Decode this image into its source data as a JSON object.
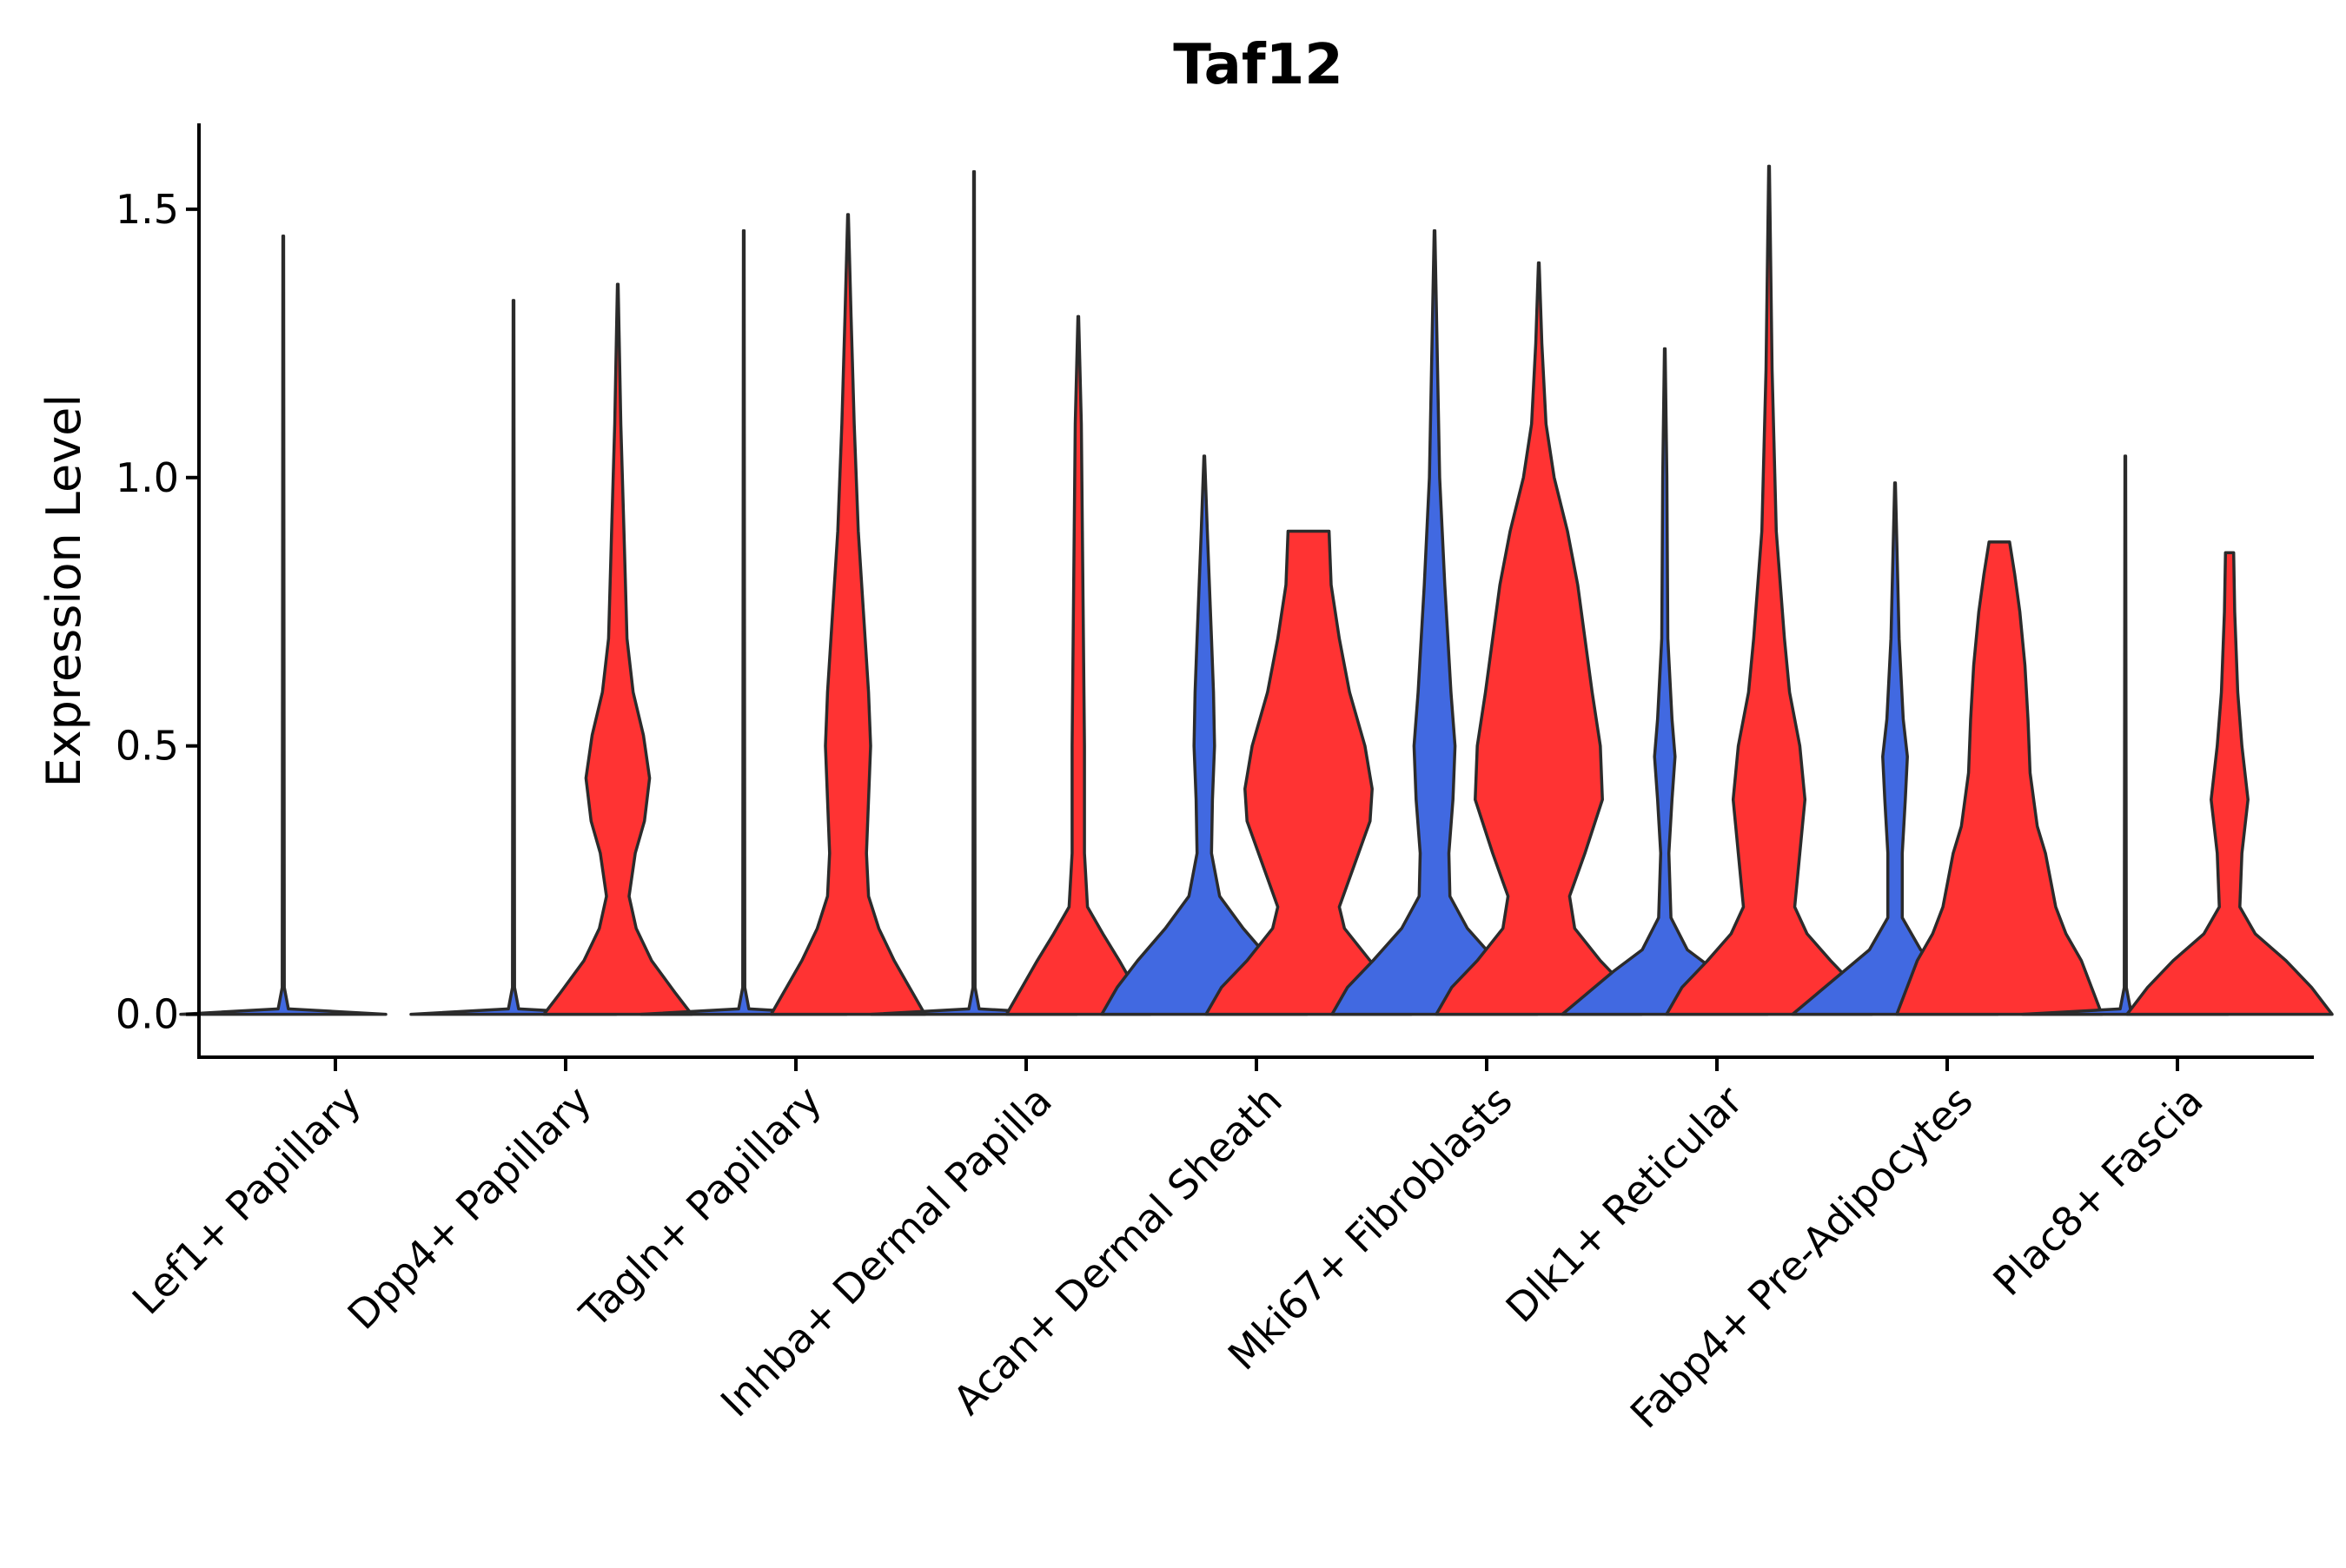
{
  "chart_data": {
    "type": "violin",
    "title": "Taf12",
    "xlabel": "",
    "ylabel": "Expression Level",
    "ylim": [
      -0.08,
      1.66
    ],
    "yticks": [
      0.0,
      0.5,
      1.0,
      1.5
    ],
    "ytick_labels": [
      "0.0",
      "0.5",
      "1.0",
      "1.5"
    ],
    "legend": "none",
    "colors": {
      "group1": "#4169E1",
      "group2": "#FF3333"
    },
    "categories": [
      "Lef1+ Papillary",
      "Dpp4+ Papillary",
      "Tagln+ Papillary",
      "Inhba+ Dermal Papilla",
      "Acan+ Dermal Sheath",
      "Mki67+ Fibroblasts",
      "Dlk1+ Reticular",
      "Fabp4+ Pre-Adipocytes",
      "Plac8+ Fascia"
    ],
    "violins": [
      [
        {
          "group": "group1",
          "max": 1.45,
          "density": [
            [
              0,
              1
            ],
            [
              0.01,
              0.05
            ],
            [
              0.05,
              0.01
            ],
            [
              1.45,
              0.003
            ]
          ]
        },
        null
      ],
      [
        {
          "group": "group1",
          "max": 1.33,
          "density": [
            [
              0,
              1
            ],
            [
              0.01,
              0.05
            ],
            [
              0.05,
              0.01
            ],
            [
              1.33,
              0.003
            ]
          ]
        },
        {
          "group": "group2",
          "max": 1.36,
          "density": [
            [
              0,
              0.72
            ],
            [
              0.04,
              0.56
            ],
            [
              0.1,
              0.33
            ],
            [
              0.16,
              0.18
            ],
            [
              0.22,
              0.11
            ],
            [
              0.3,
              0.17
            ],
            [
              0.36,
              0.26
            ],
            [
              0.44,
              0.31
            ],
            [
              0.52,
              0.25
            ],
            [
              0.6,
              0.15
            ],
            [
              0.7,
              0.09
            ],
            [
              0.9,
              0.06
            ],
            [
              1.1,
              0.03
            ],
            [
              1.36,
              0.003
            ]
          ]
        }
      ],
      [
        {
          "group": "group1",
          "max": 1.46,
          "density": [
            [
              0,
              1
            ],
            [
              0.01,
              0.05
            ],
            [
              0.05,
              0.01
            ],
            [
              1.46,
              0.003
            ]
          ]
        },
        {
          "group": "group2",
          "max": 1.49,
          "density": [
            [
              0,
              0.75
            ],
            [
              0.05,
              0.6
            ],
            [
              0.1,
              0.45
            ],
            [
              0.16,
              0.3
            ],
            [
              0.22,
              0.2
            ],
            [
              0.3,
              0.18
            ],
            [
              0.4,
              0.2
            ],
            [
              0.5,
              0.22
            ],
            [
              0.6,
              0.2
            ],
            [
              0.75,
              0.15
            ],
            [
              0.9,
              0.1
            ],
            [
              1.1,
              0.06
            ],
            [
              1.3,
              0.03
            ],
            [
              1.49,
              0.003
            ]
          ]
        }
      ],
      [
        {
          "group": "group1",
          "max": 1.57,
          "density": [
            [
              0,
              1
            ],
            [
              0.01,
              0.05
            ],
            [
              0.05,
              0.01
            ],
            [
              1.57,
              0.003
            ]
          ]
        },
        {
          "group": "group2",
          "max": 1.3,
          "density": [
            [
              0,
              0.7
            ],
            [
              0.05,
              0.55
            ],
            [
              0.1,
              0.4
            ],
            [
              0.15,
              0.24
            ],
            [
              0.2,
              0.09
            ],
            [
              0.3,
              0.06
            ],
            [
              0.5,
              0.06
            ],
            [
              0.7,
              0.05
            ],
            [
              0.9,
              0.04
            ],
            [
              1.1,
              0.03
            ],
            [
              1.3,
              0.003
            ]
          ]
        }
      ],
      [
        {
          "group": "group1",
          "max": 1.04,
          "density": [
            [
              0,
              1
            ],
            [
              0.05,
              0.85
            ],
            [
              0.1,
              0.65
            ],
            [
              0.16,
              0.38
            ],
            [
              0.22,
              0.15
            ],
            [
              0.3,
              0.07
            ],
            [
              0.4,
              0.08
            ],
            [
              0.5,
              0.1
            ],
            [
              0.6,
              0.09
            ],
            [
              0.7,
              0.07
            ],
            [
              0.8,
              0.05
            ],
            [
              0.9,
              0.03
            ],
            [
              1.04,
              0.003
            ]
          ]
        },
        {
          "group": "group2",
          "max": 0.9,
          "density": [
            [
              0,
              1
            ],
            [
              0.05,
              0.85
            ],
            [
              0.1,
              0.6
            ],
            [
              0.16,
              0.35
            ],
            [
              0.2,
              0.3
            ],
            [
              0.28,
              0.45
            ],
            [
              0.36,
              0.6
            ],
            [
              0.42,
              0.62
            ],
            [
              0.5,
              0.55
            ],
            [
              0.6,
              0.4
            ],
            [
              0.7,
              0.3
            ],
            [
              0.8,
              0.22
            ],
            [
              0.9,
              0.2
            ]
          ]
        }
      ],
      [
        {
          "group": "group1",
          "max": 1.46,
          "density": [
            [
              0,
              1
            ],
            [
              0.05,
              0.85
            ],
            [
              0.1,
              0.6
            ],
            [
              0.16,
              0.32
            ],
            [
              0.22,
              0.15
            ],
            [
              0.3,
              0.14
            ],
            [
              0.4,
              0.18
            ],
            [
              0.5,
              0.2
            ],
            [
              0.6,
              0.16
            ],
            [
              0.8,
              0.1
            ],
            [
              1.0,
              0.05
            ],
            [
              1.2,
              0.03
            ],
            [
              1.46,
              0.003
            ]
          ]
        },
        {
          "group": "group2",
          "max": 1.4,
          "density": [
            [
              0,
              1
            ],
            [
              0.05,
              0.85
            ],
            [
              0.1,
              0.6
            ],
            [
              0.16,
              0.35
            ],
            [
              0.22,
              0.3
            ],
            [
              0.3,
              0.45
            ],
            [
              0.4,
              0.62
            ],
            [
              0.5,
              0.6
            ],
            [
              0.6,
              0.52
            ],
            [
              0.7,
              0.45
            ],
            [
              0.8,
              0.38
            ],
            [
              0.9,
              0.28
            ],
            [
              1.0,
              0.15
            ],
            [
              1.1,
              0.07
            ],
            [
              1.25,
              0.03
            ],
            [
              1.4,
              0.003
            ]
          ]
        }
      ],
      [
        {
          "group": "group1",
          "max": 1.24,
          "density": [
            [
              0,
              1
            ],
            [
              0.04,
              0.75
            ],
            [
              0.08,
              0.5
            ],
            [
              0.12,
              0.22
            ],
            [
              0.18,
              0.06
            ],
            [
              0.3,
              0.04
            ],
            [
              0.4,
              0.07
            ],
            [
              0.48,
              0.1
            ],
            [
              0.55,
              0.07
            ],
            [
              0.7,
              0.03
            ],
            [
              1.0,
              0.02
            ],
            [
              1.24,
              0.003
            ]
          ]
        },
        {
          "group": "group2",
          "max": 1.58,
          "density": [
            [
              0,
              1
            ],
            [
              0.05,
              0.85
            ],
            [
              0.1,
              0.6
            ],
            [
              0.15,
              0.37
            ],
            [
              0.2,
              0.25
            ],
            [
              0.3,
              0.3
            ],
            [
              0.4,
              0.35
            ],
            [
              0.5,
              0.3
            ],
            [
              0.6,
              0.2
            ],
            [
              0.7,
              0.15
            ],
            [
              0.9,
              0.07
            ],
            [
              1.2,
              0.03
            ],
            [
              1.58,
              0.003
            ]
          ]
        }
      ],
      [
        {
          "group": "group1",
          "max": 0.99,
          "density": [
            [
              0,
              1
            ],
            [
              0.04,
              0.75
            ],
            [
              0.08,
              0.5
            ],
            [
              0.12,
              0.25
            ],
            [
              0.18,
              0.07
            ],
            [
              0.3,
              0.07
            ],
            [
              0.4,
              0.1
            ],
            [
              0.48,
              0.12
            ],
            [
              0.55,
              0.08
            ],
            [
              0.7,
              0.04
            ],
            [
              0.99,
              0.003
            ]
          ]
        },
        {
          "group": "group2",
          "max": 0.88,
          "density": [
            [
              0,
              1
            ],
            [
              0.05,
              0.9
            ],
            [
              0.1,
              0.8
            ],
            [
              0.15,
              0.65
            ],
            [
              0.2,
              0.55
            ],
            [
              0.3,
              0.45
            ],
            [
              0.35,
              0.37
            ],
            [
              0.45,
              0.3
            ],
            [
              0.55,
              0.28
            ],
            [
              0.65,
              0.25
            ],
            [
              0.75,
              0.2
            ],
            [
              0.82,
              0.15
            ],
            [
              0.88,
              0.1
            ]
          ]
        }
      ],
      [
        {
          "group": "group1",
          "max": 1.04,
          "density": [
            [
              0,
              1
            ],
            [
              0.01,
              0.05
            ],
            [
              0.05,
              0.01
            ],
            [
              1.04,
              0.003
            ]
          ]
        },
        {
          "group": "group2",
          "max": 0.86,
          "density": [
            [
              0,
              1
            ],
            [
              0.05,
              0.8
            ],
            [
              0.1,
              0.55
            ],
            [
              0.15,
              0.25
            ],
            [
              0.2,
              0.1
            ],
            [
              0.3,
              0.12
            ],
            [
              0.4,
              0.18
            ],
            [
              0.5,
              0.12
            ],
            [
              0.6,
              0.08
            ],
            [
              0.75,
              0.05
            ],
            [
              0.86,
              0.04
            ]
          ]
        }
      ]
    ]
  }
}
